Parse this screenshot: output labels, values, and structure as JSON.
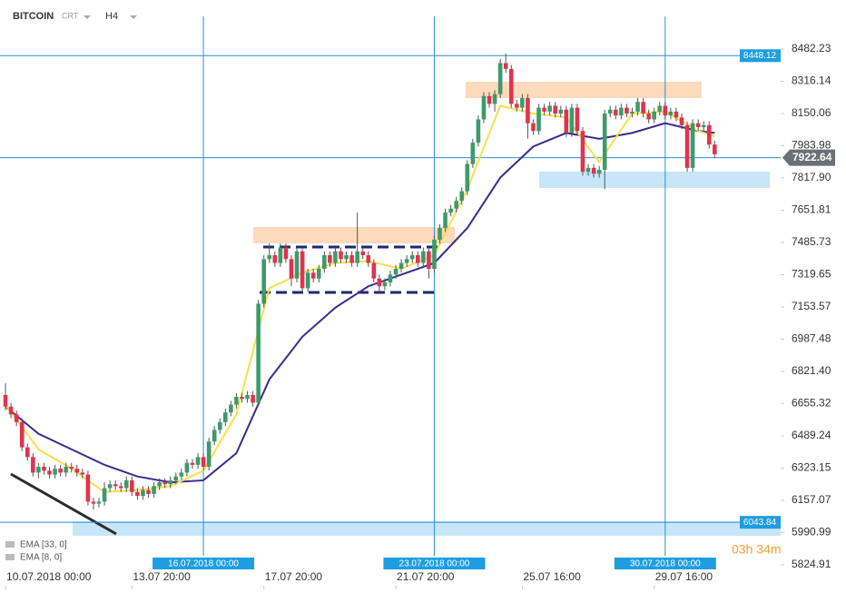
{
  "header": {
    "symbol": "BITCOIN",
    "source": "CRT",
    "interval": "H4"
  },
  "legend": [
    "EMA [33, 0]",
    "EMA [8, 0]"
  ],
  "timer": "03h 34m",
  "chart_data": {
    "type": "candlestick",
    "ylim": [
      5717,
      8735
    ],
    "yticks": [
      8482.23,
      8316.14,
      8150.06,
      7983.98,
      {
        "value": 7817.9,
        "label": "7817.90"
      },
      7651.81,
      7485.73,
      7319.65,
      7153.57,
      6987.48,
      {
        "value": 6821.4,
        "label": "6821.40"
      },
      6655.32,
      6489.24,
      6323.15,
      6157.07,
      5990.99,
      5824.91
    ],
    "xlim": [
      -1,
      141
    ],
    "xticks": [
      {
        "value": 0,
        "label": "10.07.2018  00:00"
      },
      {
        "value": 23,
        "label": "13.07  20:00"
      },
      {
        "value": 47,
        "label": "17.07  20:00"
      },
      {
        "value": 71,
        "label": "21.07  20:00"
      },
      {
        "value": 94,
        "label": "25.07  16:00"
      },
      {
        "value": 118,
        "label": "29.07  16:00"
      }
    ],
    "markers": [
      {
        "value": 36,
        "label": "16.07.2018 00:00"
      },
      {
        "value": 78,
        "label": "23.07.2018 00:00"
      },
      {
        "value": 120,
        "label": "30.07.2018 00:00"
      }
    ],
    "price_lines": [
      8448.12,
      6043.84
    ],
    "last_price": 7922.64,
    "up_color": "#3d9a6a",
    "down_color": "#e0334f",
    "candles": [
      [
        6700,
        6760,
        6620,
        6640
      ],
      [
        6640,
        6660,
        6580,
        6600
      ],
      [
        6600,
        6620,
        6540,
        6560
      ],
      [
        6560,
        6580,
        6410,
        6430
      ],
      [
        6430,
        6450,
        6360,
        6380
      ],
      [
        6380,
        6400,
        6280,
        6300
      ],
      [
        6300,
        6350,
        6270,
        6330
      ],
      [
        6330,
        6350,
        6290,
        6310
      ],
      [
        6310,
        6330,
        6270,
        6290
      ],
      [
        6290,
        6340,
        6270,
        6320
      ],
      [
        6320,
        6340,
        6280,
        6300
      ],
      [
        6300,
        6350,
        6280,
        6330
      ],
      [
        6330,
        6350,
        6300,
        6320
      ],
      [
        6320,
        6340,
        6280,
        6300
      ],
      [
        6300,
        6320,
        6270,
        6290
      ],
      [
        6290,
        6310,
        6130,
        6150
      ],
      [
        6150,
        6170,
        6110,
        6140
      ],
      [
        6140,
        6170,
        6120,
        6150
      ],
      [
        6150,
        6250,
        6130,
        6220
      ],
      [
        6220,
        6260,
        6200,
        6240
      ],
      [
        6240,
        6260,
        6210,
        6230
      ],
      [
        6230,
        6250,
        6200,
        6220
      ],
      [
        6220,
        6280,
        6200,
        6260
      ],
      [
        6260,
        6280,
        6180,
        6200
      ],
      [
        6200,
        6220,
        6160,
        6180
      ],
      [
        6180,
        6230,
        6160,
        6210
      ],
      [
        6210,
        6230,
        6170,
        6190
      ],
      [
        6190,
        6250,
        6170,
        6230
      ],
      [
        6230,
        6270,
        6210,
        6250
      ],
      [
        6250,
        6270,
        6220,
        6240
      ],
      [
        6240,
        6280,
        6220,
        6260
      ],
      [
        6260,
        6300,
        6240,
        6280
      ],
      [
        6280,
        6320,
        6260,
        6300
      ],
      [
        6300,
        6370,
        6280,
        6350
      ],
      [
        6350,
        6370,
        6320,
        6340
      ],
      [
        6340,
        6400,
        6320,
        6380
      ],
      [
        6380,
        6400,
        6310,
        6330
      ],
      [
        6330,
        6480,
        6310,
        6460
      ],
      [
        6460,
        6540,
        6440,
        6520
      ],
      [
        6520,
        6580,
        6500,
        6560
      ],
      [
        6560,
        6630,
        6540,
        6610
      ],
      [
        6610,
        6670,
        6590,
        6650
      ],
      [
        6650,
        6710,
        6630,
        6690
      ],
      [
        6690,
        6710,
        6660,
        6680
      ],
      [
        6680,
        6720,
        6660,
        6700
      ],
      [
        6700,
        6720,
        6640,
        6660
      ],
      [
        6660,
        7190,
        6650,
        7170
      ],
      [
        7170,
        7420,
        7150,
        7400
      ],
      [
        7400,
        7480,
        7380,
        7420
      ],
      [
        7420,
        7440,
        7360,
        7380
      ],
      [
        7380,
        7480,
        7360,
        7460
      ],
      [
        7460,
        7480,
        7380,
        7400
      ],
      [
        7400,
        7420,
        7260,
        7300
      ],
      [
        7300,
        7460,
        7280,
        7440
      ],
      [
        7440,
        7460,
        7230,
        7250
      ],
      [
        7250,
        7350,
        7230,
        7330
      ],
      [
        7330,
        7350,
        7280,
        7300
      ],
      [
        7300,
        7370,
        7280,
        7350
      ],
      [
        7350,
        7440,
        7330,
        7420
      ],
      [
        7420,
        7440,
        7360,
        7380
      ],
      [
        7380,
        7460,
        7360,
        7440
      ],
      [
        7440,
        7460,
        7380,
        7400
      ],
      [
        7400,
        7440,
        7380,
        7420
      ],
      [
        7420,
        7440,
        7360,
        7380
      ],
      [
        7380,
        7640,
        7360,
        7440
      ],
      [
        7440,
        7460,
        7400,
        7420
      ],
      [
        7420,
        7440,
        7360,
        7380
      ],
      [
        7380,
        7400,
        7280,
        7300
      ],
      [
        7300,
        7320,
        7230,
        7260
      ],
      [
        7260,
        7300,
        7240,
        7280
      ],
      [
        7280,
        7340,
        7260,
        7320
      ],
      [
        7320,
        7370,
        7300,
        7350
      ],
      [
        7350,
        7400,
        7330,
        7380
      ],
      [
        7380,
        7420,
        7360,
        7400
      ],
      [
        7400,
        7440,
        7380,
        7420
      ],
      [
        7420,
        7440,
        7360,
        7380
      ],
      [
        7380,
        7460,
        7360,
        7440
      ],
      [
        7440,
        7460,
        7300,
        7350
      ],
      [
        7350,
        7520,
        7330,
        7500
      ],
      [
        7500,
        7580,
        7480,
        7560
      ],
      [
        7560,
        7660,
        7540,
        7640
      ],
      [
        7640,
        7680,
        7620,
        7660
      ],
      [
        7660,
        7720,
        7640,
        7700
      ],
      [
        7700,
        7770,
        7680,
        7750
      ],
      [
        7750,
        7910,
        7730,
        7890
      ],
      [
        7890,
        8020,
        7870,
        8000
      ],
      [
        8000,
        8140,
        7980,
        8120
      ],
      [
        8120,
        8260,
        8100,
        8240
      ],
      [
        8240,
        8260,
        8180,
        8200
      ],
      [
        8200,
        8270,
        8160,
        8250
      ],
      [
        8250,
        8430,
        8230,
        8410
      ],
      [
        8410,
        8460,
        8360,
        8380
      ],
      [
        8380,
        8400,
        8180,
        8200
      ],
      [
        8200,
        8220,
        8160,
        8180
      ],
      [
        8180,
        8250,
        8160,
        8230
      ],
      [
        8230,
        8250,
        8020,
        8100
      ],
      [
        8100,
        8120,
        8040,
        8060
      ],
      [
        8060,
        8200,
        8040,
        8180
      ],
      [
        8180,
        8200,
        8140,
        8160
      ],
      [
        8160,
        8210,
        8140,
        8190
      ],
      [
        8190,
        8210,
        8130,
        8150
      ],
      [
        8150,
        8190,
        8130,
        8170
      ],
      [
        8170,
        8190,
        8030,
        8050
      ],
      [
        8050,
        8200,
        8030,
        8180
      ],
      [
        8180,
        8200,
        8040,
        8060
      ],
      [
        8060,
        8080,
        7830,
        7850
      ],
      [
        7850,
        7890,
        7830,
        7870
      ],
      [
        7870,
        7890,
        7820,
        7840
      ],
      [
        7840,
        7880,
        7820,
        7860
      ],
      [
        7860,
        8170,
        7760,
        8150
      ],
      [
        8150,
        8190,
        8130,
        8170
      ],
      [
        8170,
        8190,
        8120,
        8140
      ],
      [
        8140,
        8200,
        8120,
        8180
      ],
      [
        8180,
        8200,
        8130,
        8150
      ],
      [
        8150,
        8180,
        8130,
        8160
      ],
      [
        8160,
        8230,
        8140,
        8210
      ],
      [
        8210,
        8230,
        8130,
        8150
      ],
      [
        8150,
        8170,
        8100,
        8120
      ],
      [
        8120,
        8180,
        8100,
        8160
      ],
      [
        8160,
        8210,
        8140,
        8190
      ],
      [
        8190,
        8210,
        8120,
        8140
      ],
      [
        8140,
        8180,
        8120,
        8160
      ],
      [
        8160,
        8180,
        8110,
        8130
      ],
      [
        8130,
        8150,
        8070,
        8090
      ],
      [
        8090,
        8110,
        7850,
        7870
      ],
      [
        7870,
        8120,
        7850,
        8100
      ],
      [
        8100,
        8120,
        8060,
        8080
      ],
      [
        8080,
        8110,
        8060,
        8090
      ],
      [
        8090,
        8110,
        7970,
        7990
      ],
      [
        7990,
        8010,
        7920,
        7940
      ]
    ],
    "ema_x": [
      0,
      6,
      12,
      18,
      24,
      30,
      36,
      42,
      48,
      54,
      60,
      66,
      72,
      78,
      84,
      90,
      96,
      102,
      108,
      114,
      120,
      126,
      129
    ],
    "series": [
      {
        "name": "EMA [33, 0]",
        "color": "#3b2a8c",
        "values": [
          6640,
          6500,
          6420,
          6340,
          6280,
          6250,
          6260,
          6400,
          6780,
          7000,
          7150,
          7260,
          7320,
          7380,
          7560,
          7820,
          7980,
          8050,
          8020,
          8050,
          8100,
          8060,
          8050
        ]
      },
      {
        "name": "EMA [8, 0]",
        "color": "#f5e04a",
        "values": [
          6650,
          6420,
          6320,
          6200,
          6210,
          6230,
          6310,
          6600,
          7250,
          7330,
          7380,
          7390,
          7350,
          7420,
          7760,
          8190,
          8150,
          8130,
          7900,
          8150,
          8160,
          8060,
          8033
        ]
      }
    ]
  }
}
